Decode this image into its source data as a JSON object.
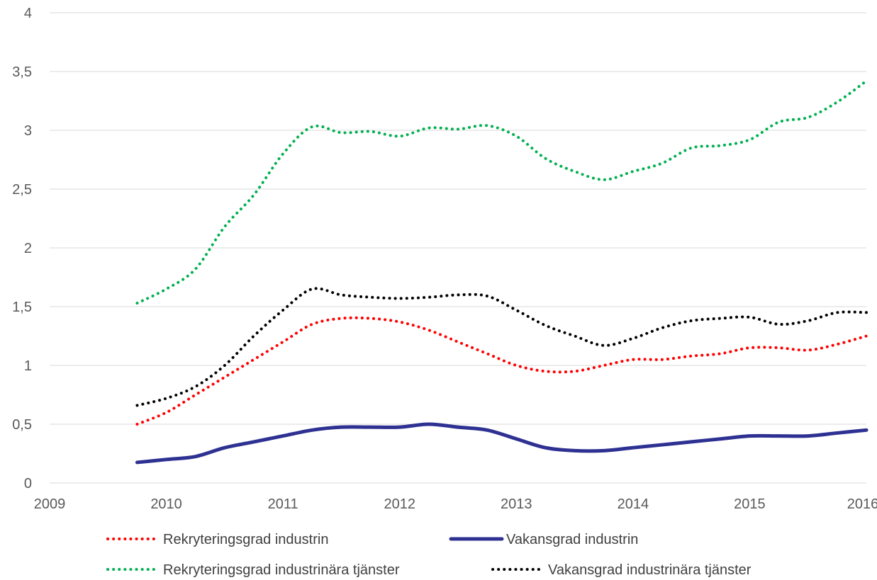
{
  "chart_data": {
    "type": "line",
    "title": "",
    "xlabel": "",
    "ylabel": "",
    "xlim": [
      2009,
      2016
    ],
    "ylim": [
      0,
      4
    ],
    "x_ticks": [
      "2009",
      "2010",
      "2011",
      "2012",
      "2013",
      "2014",
      "2015",
      "2016"
    ],
    "y_ticks": [
      "0",
      "0,5",
      "1",
      "1,5",
      "2",
      "2,5",
      "3",
      "3,5",
      "4"
    ],
    "grid": "horizontal",
    "legend_position": "bottom",
    "series": [
      {
        "name": "Rekryteringsgrad industrin",
        "color": "#ff0000",
        "style": "dotted",
        "x": [
          2009.75,
          2010.0,
          2010.25,
          2010.5,
          2010.75,
          2011.0,
          2011.25,
          2011.5,
          2011.75,
          2012.0,
          2012.25,
          2012.5,
          2012.75,
          2013.0,
          2013.25,
          2013.5,
          2013.75,
          2014.0,
          2014.25,
          2014.5,
          2014.75,
          2015.0,
          2015.25,
          2015.5,
          2015.75,
          2016.0
        ],
        "values": [
          0.5,
          0.6,
          0.75,
          0.9,
          1.05,
          1.2,
          1.35,
          1.4,
          1.4,
          1.37,
          1.3,
          1.2,
          1.1,
          1.0,
          0.95,
          0.95,
          1.0,
          1.05,
          1.05,
          1.08,
          1.1,
          1.15,
          1.15,
          1.13,
          1.18,
          1.25
        ]
      },
      {
        "name": "Vakansgrad industrin",
        "color": "#2e3192",
        "style": "solid",
        "x": [
          2009.75,
          2010.0,
          2010.25,
          2010.5,
          2010.75,
          2011.0,
          2011.25,
          2011.5,
          2011.75,
          2012.0,
          2012.25,
          2012.5,
          2012.75,
          2013.0,
          2013.25,
          2013.5,
          2013.75,
          2014.0,
          2014.25,
          2014.5,
          2014.75,
          2015.0,
          2015.25,
          2015.5,
          2015.75,
          2016.0
        ],
        "values": [
          0.175,
          0.2,
          0.225,
          0.3,
          0.35,
          0.4,
          0.45,
          0.475,
          0.475,
          0.475,
          0.5,
          0.475,
          0.45,
          0.375,
          0.3,
          0.275,
          0.275,
          0.3,
          0.325,
          0.35,
          0.375,
          0.4,
          0.4,
          0.4,
          0.425,
          0.45
        ]
      },
      {
        "name": "Rekryteringsgrad industrinära tjänster",
        "color": "#00b050",
        "style": "dotted",
        "x": [
          2009.75,
          2010.0,
          2010.25,
          2010.5,
          2010.75,
          2011.0,
          2011.25,
          2011.5,
          2011.75,
          2012.0,
          2012.25,
          2012.5,
          2012.75,
          2013.0,
          2013.25,
          2013.5,
          2013.75,
          2014.0,
          2014.25,
          2014.5,
          2014.75,
          2015.0,
          2015.25,
          2015.5,
          2015.75,
          2016.0
        ],
        "values": [
          1.53,
          1.65,
          1.82,
          2.18,
          2.45,
          2.8,
          3.03,
          2.98,
          2.99,
          2.95,
          3.02,
          3.01,
          3.04,
          2.95,
          2.76,
          2.65,
          2.58,
          2.65,
          2.72,
          2.85,
          2.87,
          2.92,
          3.07,
          3.11,
          3.24,
          3.42
        ]
      },
      {
        "name": "Vakansgrad industrinära tjänster",
        "color": "#000000",
        "style": "dotted",
        "x": [
          2009.75,
          2010.0,
          2010.25,
          2010.5,
          2010.75,
          2011.0,
          2011.25,
          2011.5,
          2011.75,
          2012.0,
          2012.25,
          2012.5,
          2012.75,
          2013.0,
          2013.25,
          2013.5,
          2013.75,
          2014.0,
          2014.25,
          2014.5,
          2014.75,
          2015.0,
          2015.25,
          2015.5,
          2015.75,
          2016.0
        ],
        "values": [
          0.66,
          0.72,
          0.82,
          1.0,
          1.25,
          1.47,
          1.65,
          1.6,
          1.58,
          1.57,
          1.58,
          1.6,
          1.59,
          1.47,
          1.34,
          1.25,
          1.17,
          1.23,
          1.32,
          1.38,
          1.4,
          1.41,
          1.35,
          1.38,
          1.45,
          1.45
        ]
      }
    ]
  }
}
